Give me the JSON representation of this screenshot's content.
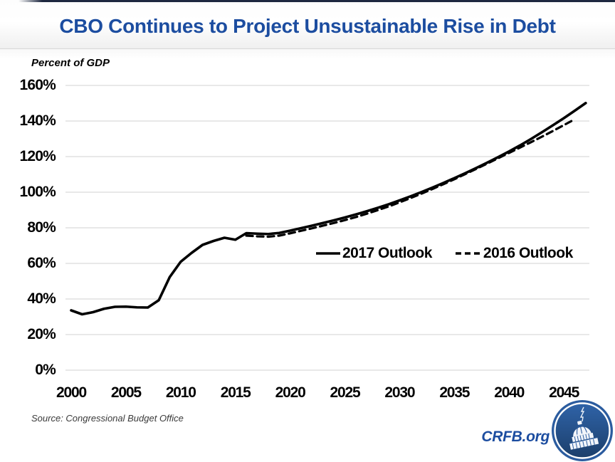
{
  "header": {
    "title": "CBO Continues to Project Unsustainable Rise in Debt"
  },
  "labels": {
    "y_axis_title": "Percent of GDP"
  },
  "chart_data": {
    "type": "line",
    "title": "CBO Continues to Project Unsustainable Rise in Debt",
    "ylabel": "Percent of GDP",
    "xlabel": "",
    "ylim": [
      0,
      160
    ],
    "xlim": [
      2000,
      2048
    ],
    "grid": "horizontal-only",
    "legend_position": "inside-center-right",
    "y_ticks": [
      "0%",
      "20%",
      "40%",
      "60%",
      "80%",
      "100%",
      "120%",
      "140%",
      "160%"
    ],
    "y_tick_values": [
      0,
      20,
      40,
      60,
      80,
      100,
      120,
      140,
      160
    ],
    "x_ticks": [
      "2000",
      "2005",
      "2010",
      "2015",
      "2020",
      "2025",
      "2030",
      "2035",
      "2040",
      "2045"
    ],
    "x_tick_values": [
      2000,
      2005,
      2010,
      2015,
      2020,
      2025,
      2030,
      2035,
      2040,
      2045
    ],
    "series": [
      {
        "name": "2017 Outlook",
        "style": "solid",
        "color": "#000000",
        "years": [
          2000,
          2001,
          2002,
          2003,
          2004,
          2005,
          2006,
          2007,
          2008,
          2009,
          2010,
          2011,
          2012,
          2013,
          2014,
          2015,
          2016,
          2017,
          2018,
          2019,
          2020,
          2021,
          2022,
          2023,
          2024,
          2025,
          2026,
          2027,
          2028,
          2029,
          2030,
          2031,
          2032,
          2033,
          2034,
          2035,
          2036,
          2037,
          2038,
          2039,
          2040,
          2041,
          2042,
          2043,
          2044,
          2045,
          2046,
          2047
        ],
        "values": [
          33.6,
          31.4,
          32.6,
          34.5,
          35.6,
          35.7,
          35.3,
          35.2,
          39.3,
          52.3,
          60.9,
          65.9,
          70.4,
          72.6,
          74.4,
          73.3,
          77.0,
          76.7,
          76.5,
          77.1,
          78.4,
          79.8,
          81.2,
          82.7,
          84.2,
          85.8,
          87.5,
          89.3,
          91.2,
          93.2,
          95.4,
          97.7,
          100.1,
          102.6,
          105.2,
          107.9,
          110.7,
          113.6,
          116.6,
          119.7,
          122.9,
          126.3,
          129.9,
          133.7,
          137.6,
          141.6,
          145.8,
          150.1
        ]
      },
      {
        "name": "2016 Outlook",
        "style": "dashed",
        "color": "#000000",
        "years": [
          2016,
          2017,
          2018,
          2019,
          2020,
          2021,
          2022,
          2023,
          2024,
          2025,
          2026,
          2027,
          2028,
          2029,
          2030,
          2031,
          2032,
          2033,
          2034,
          2035,
          2036,
          2037,
          2038,
          2039,
          2040,
          2041,
          2042,
          2043,
          2044,
          2045,
          2046
        ],
        "values": [
          75.6,
          75.2,
          75.0,
          75.6,
          76.9,
          78.3,
          79.7,
          81.2,
          82.7,
          84.3,
          86.0,
          87.9,
          89.9,
          92.0,
          94.3,
          96.7,
          99.2,
          101.8,
          104.5,
          107.3,
          110.2,
          113.1,
          116.1,
          119.1,
          122.1,
          125.1,
          128.1,
          131.2,
          134.4,
          137.7,
          141.0
        ]
      }
    ]
  },
  "footer": {
    "source": "Source: Congressional Budget Office",
    "brand": "CRFB.org"
  },
  "colors": {
    "title_blue": "#1c4da0",
    "grid_gray": "#d9d9d9",
    "line_black": "#000000",
    "logo_blue": "#2b5c9f",
    "logo_dark_blue": "#1c3f6b",
    "top_strip": "#1e2840"
  },
  "icons": {
    "logo": "capitol-dome-icon",
    "legend_solid": "solid-line-swatch",
    "legend_dashed": "dashed-line-swatch"
  }
}
